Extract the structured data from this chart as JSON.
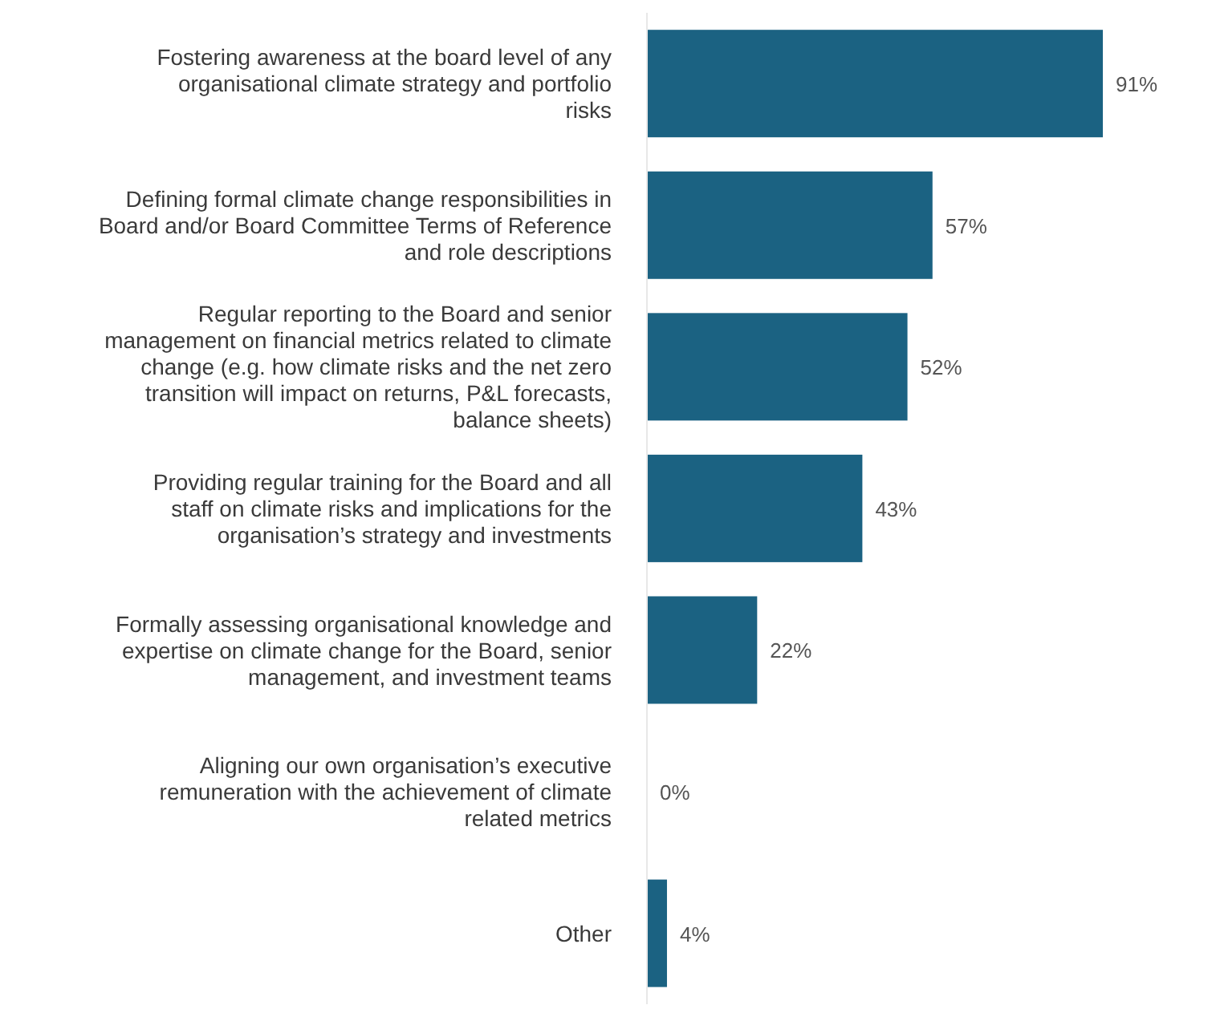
{
  "chart_data": {
    "type": "bar",
    "orientation": "horizontal",
    "categories": [
      "Fostering awareness at the board level of any organisational climate strategy and portfolio risks",
      "Defining formal climate change responsibilities in Board and/or Board Committee Terms of Reference and role descriptions",
      "Regular reporting to the Board and senior management on financial metrics related to climate change (e.g. how climate risks and the net zero transition will impact on returns, P&L forecasts, balance sheets)",
      "Providing regular training for the Board and all staff on climate risks and implications for the organisation’s strategy and investments",
      "Formally assessing organisational knowledge and expertise on climate change for the Board, senior management, and investment teams",
      "Aligning our own organisation’s executive remuneration with the achievement of climate related metrics",
      "Other"
    ],
    "values": [
      91,
      57,
      52,
      43,
      22,
      0,
      4
    ],
    "value_labels": [
      "91%",
      "57%",
      "52%",
      "43%",
      "22%",
      "0%",
      "4%"
    ],
    "color": "#1b6282",
    "tick_labels": "y"
  }
}
